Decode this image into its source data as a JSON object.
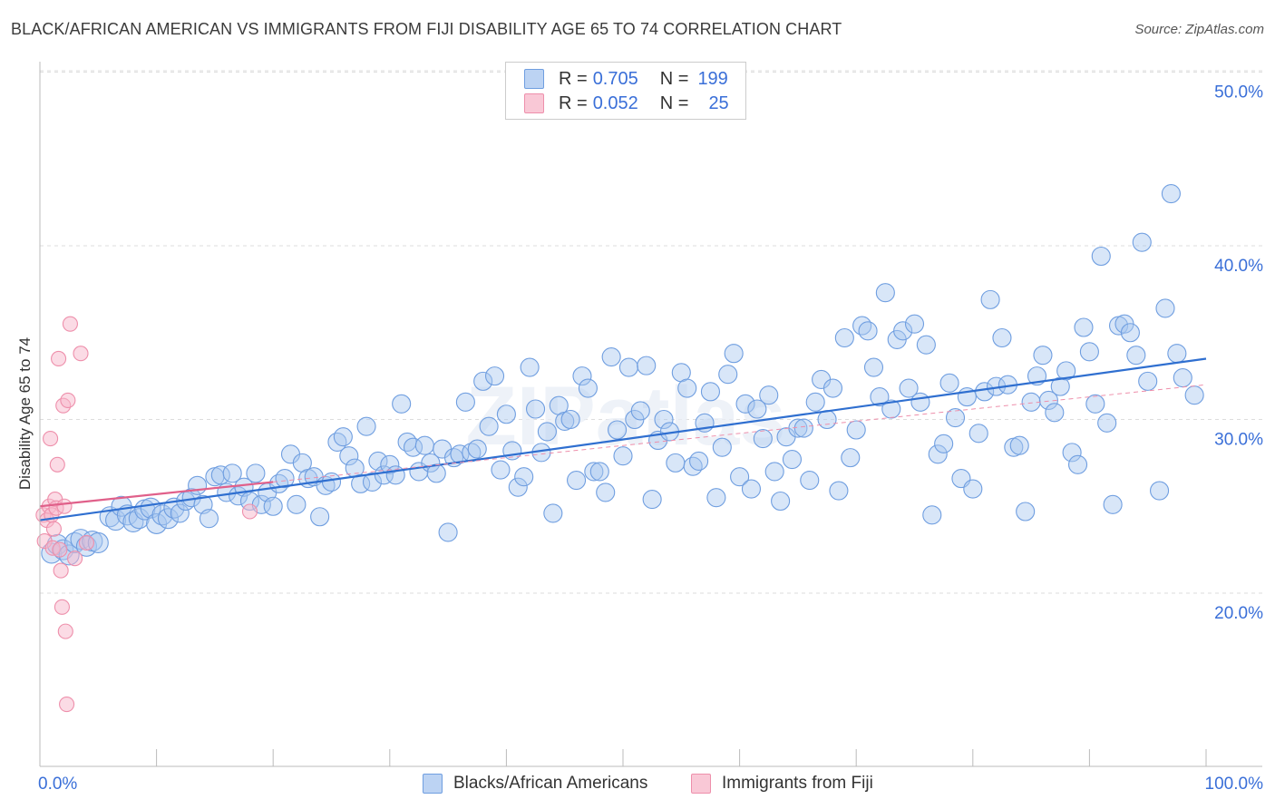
{
  "header": {
    "title": "BLACK/AFRICAN AMERICAN VS IMMIGRANTS FROM FIJI DISABILITY AGE 65 TO 74 CORRELATION CHART",
    "source": "Source: ZipAtlas.com"
  },
  "legend": {
    "series1": {
      "r_label": "R =",
      "r_value": "0.705",
      "n_label": "N =",
      "n_value": "199"
    },
    "series2": {
      "r_label": "R =",
      "r_value": "0.052",
      "n_label": "N =",
      "n_value": "25"
    }
  },
  "bottom_legend": {
    "series1": "Blacks/African Americans",
    "series2": "Immigrants from Fiji"
  },
  "colors": {
    "blue_fill": "#a9c8f0",
    "blue_stroke": "#6f9ee0",
    "blue_line": "#2f6fd0",
    "pink_fill": "#f7b8cb",
    "pink_stroke": "#ee8fab",
    "pink_line": "#e0608a",
    "tick_label": "#3a6fd8",
    "grid": "#dddddd"
  },
  "chart_data": {
    "type": "scatter",
    "title": "BLACK/AFRICAN AMERICAN VS IMMIGRANTS FROM FIJI DISABILITY AGE 65 TO 74 CORRELATION CHART",
    "xlabel": "",
    "ylabel": "Disability Age 65 to 74",
    "xlim": [
      0,
      100
    ],
    "ylim": [
      10,
      52
    ],
    "x_tick_labels": [
      "0.0%",
      "100.0%"
    ],
    "y_ticks": [
      20,
      30,
      40,
      50
    ],
    "y_tick_labels": [
      "20.0%",
      "30.0%",
      "40.0%",
      "50.0%"
    ],
    "grid": true,
    "legend_position": "top-center",
    "watermark": "ZIPatlas",
    "series": [
      {
        "name": "Blacks/African Americans",
        "r": 0.705,
        "n": 199,
        "trend": {
          "x": [
            0,
            100
          ],
          "y": [
            24.2,
            33.5
          ]
        },
        "points": [
          [
            1.0,
            22.3
          ],
          [
            1.5,
            22.8
          ],
          [
            2.0,
            22.5
          ],
          [
            2.5,
            22.2
          ],
          [
            3.0,
            22.9
          ],
          [
            3.5,
            23.1
          ],
          [
            4.0,
            22.7
          ],
          [
            4.5,
            23.0
          ],
          [
            5.0,
            22.9
          ],
          [
            6.0,
            24.4
          ],
          [
            6.5,
            24.2
          ],
          [
            7.0,
            25.0
          ],
          [
            7.5,
            24.5
          ],
          [
            8.0,
            24.1
          ],
          [
            8.5,
            24.3
          ],
          [
            9.0,
            24.8
          ],
          [
            9.5,
            24.9
          ],
          [
            10.0,
            24.0
          ],
          [
            10.5,
            24.5
          ],
          [
            11.0,
            24.3
          ],
          [
            11.5,
            24.9
          ],
          [
            12.0,
            24.6
          ],
          [
            12.5,
            25.3
          ],
          [
            13.0,
            25.5
          ],
          [
            13.5,
            26.2
          ],
          [
            14.0,
            25.1
          ],
          [
            14.5,
            24.3
          ],
          [
            15.0,
            26.7
          ],
          [
            15.5,
            26.8
          ],
          [
            16.0,
            25.8
          ],
          [
            16.5,
            26.9
          ],
          [
            17.0,
            25.6
          ],
          [
            17.5,
            26.1
          ],
          [
            18.0,
            25.3
          ],
          [
            18.5,
            26.9
          ],
          [
            19.0,
            25.1
          ],
          [
            19.5,
            25.8
          ],
          [
            20.0,
            25.0
          ],
          [
            20.5,
            26.3
          ],
          [
            21.0,
            26.6
          ],
          [
            21.5,
            28.0
          ],
          [
            22.0,
            25.1
          ],
          [
            22.5,
            27.5
          ],
          [
            23.0,
            26.6
          ],
          [
            23.5,
            26.7
          ],
          [
            24.0,
            24.4
          ],
          [
            24.5,
            26.2
          ],
          [
            25.0,
            26.4
          ],
          [
            25.5,
            28.7
          ],
          [
            26.0,
            29.0
          ],
          [
            26.5,
            27.9
          ],
          [
            27.0,
            27.2
          ],
          [
            27.5,
            26.3
          ],
          [
            28.0,
            29.6
          ],
          [
            28.5,
            26.4
          ],
          [
            29.0,
            27.6
          ],
          [
            29.5,
            26.8
          ],
          [
            30.0,
            27.4
          ],
          [
            30.5,
            26.8
          ],
          [
            31.0,
            30.9
          ],
          [
            31.5,
            28.7
          ],
          [
            32.0,
            28.4
          ],
          [
            32.5,
            27.0
          ],
          [
            33.0,
            28.5
          ],
          [
            33.5,
            27.5
          ],
          [
            34.0,
            26.9
          ],
          [
            34.5,
            28.3
          ],
          [
            35.0,
            23.5
          ],
          [
            35.5,
            27.8
          ],
          [
            36.0,
            28.0
          ],
          [
            36.5,
            31.0
          ],
          [
            37.0,
            28.1
          ],
          [
            37.5,
            28.3
          ],
          [
            38.0,
            32.2
          ],
          [
            38.5,
            29.6
          ],
          [
            39.0,
            32.5
          ],
          [
            39.5,
            27.1
          ],
          [
            40.0,
            30.3
          ],
          [
            40.5,
            28.2
          ],
          [
            41.0,
            26.1
          ],
          [
            41.5,
            26.7
          ],
          [
            42.0,
            33.0
          ],
          [
            42.5,
            30.6
          ],
          [
            43.0,
            28.1
          ],
          [
            43.5,
            29.3
          ],
          [
            44.0,
            24.6
          ],
          [
            44.5,
            30.8
          ],
          [
            45.0,
            29.9
          ],
          [
            45.5,
            30.0
          ],
          [
            46.0,
            26.5
          ],
          [
            46.5,
            32.5
          ],
          [
            47.0,
            31.8
          ],
          [
            47.5,
            27.0
          ],
          [
            48.0,
            27.0
          ],
          [
            48.5,
            25.8
          ],
          [
            49.0,
            33.6
          ],
          [
            49.5,
            29.4
          ],
          [
            50.0,
            27.9
          ],
          [
            50.5,
            33.0
          ],
          [
            51.0,
            30.0
          ],
          [
            51.5,
            30.5
          ],
          [
            52.0,
            33.1
          ],
          [
            52.5,
            25.4
          ],
          [
            53.0,
            28.8
          ],
          [
            53.5,
            30.0
          ],
          [
            54.0,
            29.3
          ],
          [
            54.5,
            27.5
          ],
          [
            55.0,
            32.7
          ],
          [
            55.5,
            31.8
          ],
          [
            56.0,
            27.3
          ],
          [
            56.5,
            27.6
          ],
          [
            57.0,
            29.8
          ],
          [
            57.5,
            31.6
          ],
          [
            58.0,
            25.5
          ],
          [
            58.5,
            28.4
          ],
          [
            59.0,
            32.6
          ],
          [
            59.5,
            33.8
          ],
          [
            60.0,
            26.7
          ],
          [
            60.5,
            30.9
          ],
          [
            61.0,
            26.0
          ],
          [
            61.5,
            30.6
          ],
          [
            62.0,
            28.9
          ],
          [
            62.5,
            31.4
          ],
          [
            63.0,
            27.0
          ],
          [
            63.5,
            25.3
          ],
          [
            64.0,
            29.0
          ],
          [
            64.5,
            27.7
          ],
          [
            65.0,
            29.5
          ],
          [
            65.5,
            29.5
          ],
          [
            66.0,
            26.5
          ],
          [
            66.5,
            31.0
          ],
          [
            67.0,
            32.3
          ],
          [
            67.5,
            30.0
          ],
          [
            68.0,
            31.8
          ],
          [
            68.5,
            25.9
          ],
          [
            69.0,
            34.7
          ],
          [
            69.5,
            27.8
          ],
          [
            70.0,
            29.4
          ],
          [
            70.5,
            35.4
          ],
          [
            71.0,
            35.1
          ],
          [
            71.5,
            33.0
          ],
          [
            72.0,
            31.3
          ],
          [
            72.5,
            37.3
          ],
          [
            73.0,
            30.6
          ],
          [
            73.5,
            34.6
          ],
          [
            74.0,
            35.1
          ],
          [
            74.5,
            31.8
          ],
          [
            75.0,
            35.5
          ],
          [
            75.5,
            31.0
          ],
          [
            76.0,
            34.3
          ],
          [
            76.5,
            24.5
          ],
          [
            77.0,
            28.0
          ],
          [
            77.5,
            28.6
          ],
          [
            78.0,
            32.1
          ],
          [
            78.5,
            30.1
          ],
          [
            79.0,
            26.6
          ],
          [
            79.5,
            31.3
          ],
          [
            80.0,
            26.0
          ],
          [
            80.5,
            29.2
          ],
          [
            81.0,
            31.6
          ],
          [
            81.5,
            36.9
          ],
          [
            82.0,
            31.9
          ],
          [
            82.5,
            34.7
          ],
          [
            83.0,
            32.0
          ],
          [
            83.5,
            28.4
          ],
          [
            84.0,
            28.5
          ],
          [
            84.5,
            24.7
          ],
          [
            85.0,
            31.0
          ],
          [
            85.5,
            32.5
          ],
          [
            86.0,
            33.7
          ],
          [
            86.5,
            31.1
          ],
          [
            87.0,
            30.4
          ],
          [
            87.5,
            31.9
          ],
          [
            88.0,
            32.8
          ],
          [
            88.5,
            28.1
          ],
          [
            89.0,
            27.4
          ],
          [
            89.5,
            35.3
          ],
          [
            90.0,
            33.9
          ],
          [
            90.5,
            30.9
          ],
          [
            91.0,
            39.4
          ],
          [
            91.5,
            29.8
          ],
          [
            92.0,
            25.1
          ],
          [
            92.5,
            35.4
          ],
          [
            93.0,
            35.5
          ],
          [
            93.5,
            35.0
          ],
          [
            94.0,
            33.7
          ],
          [
            94.5,
            40.2
          ],
          [
            95.0,
            32.2
          ],
          [
            96.0,
            25.9
          ],
          [
            96.5,
            36.4
          ],
          [
            97.0,
            43.0
          ],
          [
            97.5,
            33.8
          ],
          [
            98.0,
            32.4
          ],
          [
            99.0,
            31.4
          ]
        ]
      },
      {
        "name": "Immigrants from Fiji",
        "r": 0.052,
        "n": 25,
        "trend": {
          "x": [
            0,
            20
          ],
          "y": [
            25.0,
            26.4
          ]
        },
        "points": [
          [
            0.3,
            24.5
          ],
          [
            0.4,
            23.0
          ],
          [
            0.6,
            24.2
          ],
          [
            0.8,
            25.0
          ],
          [
            0.9,
            28.9
          ],
          [
            1.0,
            24.5
          ],
          [
            1.1,
            22.6
          ],
          [
            1.2,
            23.7
          ],
          [
            1.3,
            25.4
          ],
          [
            1.4,
            24.9
          ],
          [
            1.5,
            27.4
          ],
          [
            1.6,
            33.5
          ],
          [
            1.7,
            22.5
          ],
          [
            1.8,
            21.3
          ],
          [
            1.9,
            19.2
          ],
          [
            2.0,
            30.8
          ],
          [
            2.1,
            25.0
          ],
          [
            2.2,
            17.8
          ],
          [
            2.3,
            13.6
          ],
          [
            2.4,
            31.1
          ],
          [
            2.6,
            35.5
          ],
          [
            3.0,
            22.0
          ],
          [
            3.5,
            33.8
          ],
          [
            4.0,
            22.9
          ],
          [
            18.0,
            24.7
          ]
        ]
      }
    ]
  }
}
